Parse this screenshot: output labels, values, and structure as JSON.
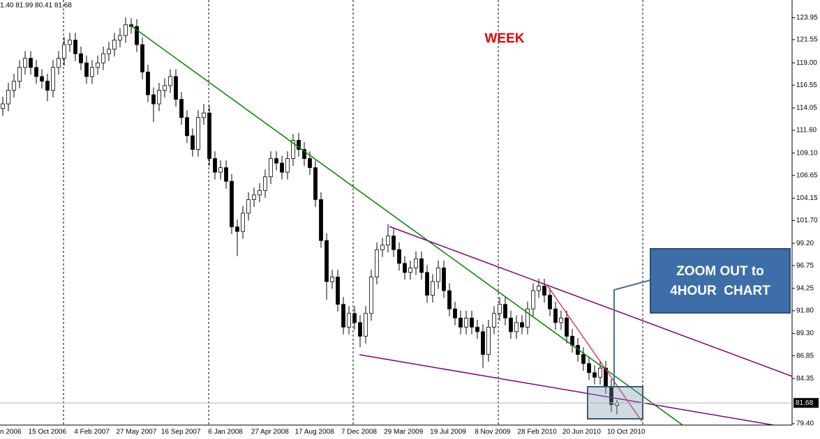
{
  "header": "1.40 81.99 80.41 81.68",
  "chart_data": {
    "type": "candlestick",
    "annotation_title": "WEEK",
    "callout": [
      "ZOOM OUT to",
      "4HOUR  CHART"
    ],
    "up_color": "#ffffff",
    "down_color": "#000000",
    "ylim": [
      79.25,
      125.9
    ],
    "yticks": [
      123.95,
      121.55,
      {
        "value": 119,
        "label": "119.00"
      },
      116.55,
      114.05,
      {
        "value": 111.6,
        "label": "111.60"
      },
      {
        "value": 109.1,
        "label": "109.10"
      },
      106.65,
      104.15,
      {
        "value": 101.7,
        "label": "101.70"
      },
      {
        "value": 99.2,
        "label": "99.20"
      },
      96.75,
      94.25,
      {
        "value": 91.8,
        "label": "91.80"
      },
      {
        "value": 89.3,
        "label": "89.30"
      },
      86.85,
      84.35,
      {
        "value": 79.4,
        "label": "79.40"
      }
    ],
    "last_price": 81.68,
    "x_labels": [
      "n 2006",
      "15 Oct 2006",
      "4 Feb 2007",
      "27 May 2007",
      "16 Sep 2007",
      "6 Jan 2008",
      "27 Apr 2008",
      "17 Aug 2008",
      "7 Dec 2008",
      "29 Mar 2009",
      "19 Jul 2009",
      "8 Nov 2009",
      "28 Feb 2010",
      "20 Jun 2010",
      "10 Oct 2010"
    ],
    "ohlc": [
      [
        114,
        115.3,
        113.2,
        114.5
      ],
      [
        114.5,
        116.8,
        113.7,
        116
      ],
      [
        116,
        117.8,
        115.2,
        117
      ],
      [
        117,
        119.3,
        116.2,
        118.5
      ],
      [
        118.5,
        120.3,
        117.7,
        119.5
      ],
      [
        119.5,
        120.3,
        117.7,
        118.5
      ],
      [
        118.5,
        119.3,
        116.7,
        117.5
      ],
      [
        117.5,
        118.3,
        116.2,
        117
      ],
      [
        117,
        117.8,
        114.8,
        116
      ],
      [
        116,
        119.3,
        115.2,
        118.5
      ],
      [
        118.5,
        120.3,
        117.7,
        119.5
      ],
      [
        119.5,
        121.8,
        118.7,
        121
      ],
      [
        121,
        122.3,
        120.2,
        121.5
      ],
      [
        121.5,
        122.3,
        119.2,
        120
      ],
      [
        120,
        120.8,
        118.2,
        119
      ],
      [
        119,
        119.8,
        116.7,
        117.5
      ],
      [
        117.5,
        119.3,
        116.7,
        118.5
      ],
      [
        118.5,
        119.8,
        117.7,
        119
      ],
      [
        119,
        120.8,
        118.2,
        120
      ],
      [
        120,
        121.3,
        119.2,
        120.5
      ],
      [
        120.5,
        122.3,
        119.7,
        121.5
      ],
      [
        121.5,
        122.8,
        120.7,
        122
      ],
      [
        122,
        124,
        121.2,
        123.2
      ],
      [
        123.2,
        123.9,
        122.2,
        123
      ],
      [
        123,
        123.8,
        120.2,
        121
      ],
      [
        121,
        121.8,
        117.2,
        118
      ],
      [
        118,
        118.8,
        114.7,
        115.5
      ],
      [
        115.5,
        116.3,
        112.5,
        114.5
      ],
      [
        114.5,
        116.8,
        113.7,
        116
      ],
      [
        116,
        117.3,
        115.2,
        116.5
      ],
      [
        116.5,
        118.3,
        115.7,
        117.5
      ],
      [
        117.5,
        118.3,
        114.2,
        115
      ],
      [
        115,
        115.8,
        112.2,
        113
      ],
      [
        113,
        113.8,
        110.2,
        111
      ],
      [
        111,
        111.8,
        108.7,
        109.5
      ],
      [
        109.5,
        113.8,
        108.7,
        113
      ],
      [
        113,
        114.5,
        112.2,
        113.5
      ],
      [
        113.5,
        114.3,
        107.7,
        108.5
      ],
      [
        108.5,
        109.3,
        106.2,
        107
      ],
      [
        107,
        108.3,
        106.2,
        107.5
      ],
      [
        107.5,
        108.3,
        105.2,
        106
      ],
      [
        106,
        106.8,
        100.2,
        101
      ],
      [
        101,
        101.8,
        97.8,
        100.5
      ],
      [
        100.5,
        103.3,
        99.7,
        102.5
      ],
      [
        102.5,
        104.8,
        101.7,
        104
      ],
      [
        104,
        105.3,
        103.2,
        104.5
      ],
      [
        104.5,
        105.8,
        103.7,
        105
      ],
      [
        105,
        107.3,
        104.2,
        106.5
      ],
      [
        106.5,
        109.3,
        105.7,
        108.5
      ],
      [
        108.5,
        109.3,
        107.2,
        108
      ],
      [
        108,
        108.8,
        106.2,
        107
      ],
      [
        107,
        109.3,
        106.2,
        108.5
      ],
      [
        108.5,
        111.2,
        107.7,
        110.5
      ],
      [
        110.5,
        111.3,
        108.7,
        109.5
      ],
      [
        109.5,
        110.3,
        107.7,
        108.5
      ],
      [
        108.5,
        109.3,
        106.7,
        107.5
      ],
      [
        107.5,
        108.3,
        103.2,
        104
      ],
      [
        104,
        104.8,
        98.7,
        99.5
      ],
      [
        99.5,
        100.3,
        93,
        95
      ],
      [
        95,
        96.3,
        94.2,
        95.5
      ],
      [
        95.5,
        96.3,
        91.7,
        92.5
      ],
      [
        92.5,
        93.3,
        89.2,
        90
      ],
      [
        90,
        92.3,
        89.2,
        91.5
      ],
      [
        91.5,
        92.3,
        89.7,
        90.5
      ],
      [
        90.5,
        91.3,
        87.8,
        89
      ],
      [
        89,
        92.3,
        88.2,
        91.5
      ],
      [
        91.5,
        96.3,
        90.7,
        95.5
      ],
      [
        95.5,
        99.3,
        94.7,
        98.5
      ],
      [
        98.5,
        99.8,
        97.7,
        99
      ],
      [
        99,
        101.3,
        98.2,
        100
      ],
      [
        100,
        100.8,
        97.7,
        98.5
      ],
      [
        98.5,
        99.3,
        96.2,
        97
      ],
      [
        97,
        97.8,
        95.2,
        96
      ],
      [
        96,
        97.3,
        95.2,
        96.5
      ],
      [
        96.5,
        98.3,
        95.7,
        97.5
      ],
      [
        97.5,
        98.3,
        95.2,
        96
      ],
      [
        96,
        96.8,
        92.7,
        93.5
      ],
      [
        93.5,
        95.8,
        92.7,
        95
      ],
      [
        95,
        97.3,
        94.2,
        96.5
      ],
      [
        96.5,
        97.3,
        93.2,
        94
      ],
      [
        94,
        94.8,
        91.2,
        92
      ],
      [
        92,
        92.8,
        90.2,
        91
      ],
      [
        91,
        91.8,
        89.2,
        90
      ],
      [
        90,
        91.8,
        89.2,
        91
      ],
      [
        91,
        91.8,
        89.2,
        90
      ],
      [
        90,
        90.8,
        88.7,
        89.5
      ],
      [
        89.5,
        90.3,
        85.5,
        87
      ],
      [
        87,
        90.8,
        86.2,
        90
      ],
      [
        90,
        92.3,
        89.2,
        91.5
      ],
      [
        91.5,
        93.3,
        90.7,
        92.5
      ],
      [
        92.5,
        93.3,
        90.2,
        91
      ],
      [
        91,
        91.8,
        88.7,
        89.5
      ],
      [
        89.5,
        91.3,
        88.7,
        90.5
      ],
      [
        90.5,
        91.3,
        89.2,
        90
      ],
      [
        90,
        92.8,
        89.2,
        92
      ],
      [
        92,
        94.8,
        91.2,
        94
      ],
      [
        94,
        95.3,
        93.2,
        94.5
      ],
      [
        94.5,
        95.3,
        92.7,
        93.5
      ],
      [
        93.5,
        94.3,
        91.2,
        92
      ],
      [
        92,
        92.8,
        89.7,
        90.5
      ],
      [
        90.5,
        91.8,
        89.7,
        91
      ],
      [
        91,
        91.8,
        88.2,
        89
      ],
      [
        89,
        89.8,
        87.2,
        88
      ],
      [
        88,
        88.8,
        86.2,
        87
      ],
      [
        87,
        87.8,
        85.2,
        86
      ],
      [
        86,
        86.8,
        84.2,
        85
      ],
      [
        85,
        85.8,
        83.7,
        84.5
      ],
      [
        84.5,
        86.3,
        83.7,
        85.5
      ],
      [
        85.5,
        86.3,
        82.7,
        83.5
      ],
      [
        83.5,
        84.3,
        80.7,
        81.5
      ],
      [
        81.4,
        81.99,
        80.41,
        81.68
      ]
    ]
  }
}
